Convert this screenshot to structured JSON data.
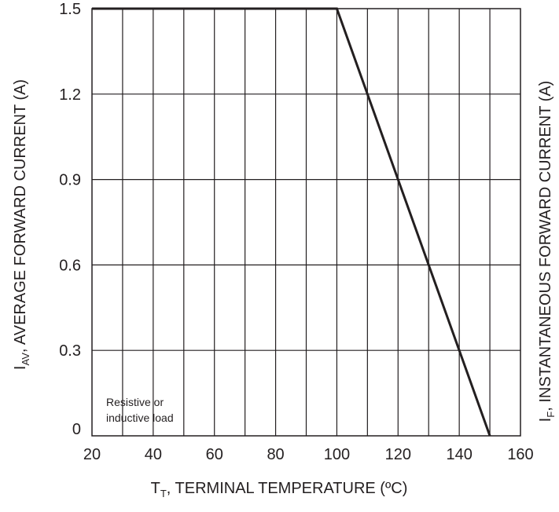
{
  "chart_data": {
    "type": "line",
    "x": [
      20,
      100,
      150
    ],
    "series": [
      {
        "values": [
          1.5,
          1.5,
          0
        ]
      }
    ],
    "xlim": [
      20,
      160
    ],
    "ylim": [
      0,
      1.5
    ],
    "x_ticks": [
      20,
      40,
      60,
      80,
      100,
      120,
      140,
      160
    ],
    "y_ticks": [
      0,
      0.3,
      0.6,
      0.9,
      1.2,
      1.5
    ],
    "x_tick_labels": [
      "20",
      "40",
      "60",
      "80",
      "100",
      "120",
      "140",
      "160"
    ],
    "y_tick_labels": [
      "0",
      "0.3",
      "0.6",
      "0.9",
      "1.2",
      "1.5"
    ],
    "x_grid_step": 10,
    "grid": true,
    "xlabel": {
      "symbol": "T",
      "sub": "T",
      "text": ", TERMINAL TEMPERATURE (ºC)"
    },
    "ylabel": {
      "symbol": "I",
      "sub": "AV",
      "text": ", AVERAGE FORWARD CURRENT (A)"
    },
    "ylabel_right": {
      "symbol": "I",
      "sub": "F",
      "text": ", INSTANTANEOUS FORWARD CURRENT (A)"
    },
    "annotation": [
      "Resistive or",
      "inductive load"
    ],
    "colors": {
      "line": "#231f20",
      "grid": "#231f20"
    }
  }
}
